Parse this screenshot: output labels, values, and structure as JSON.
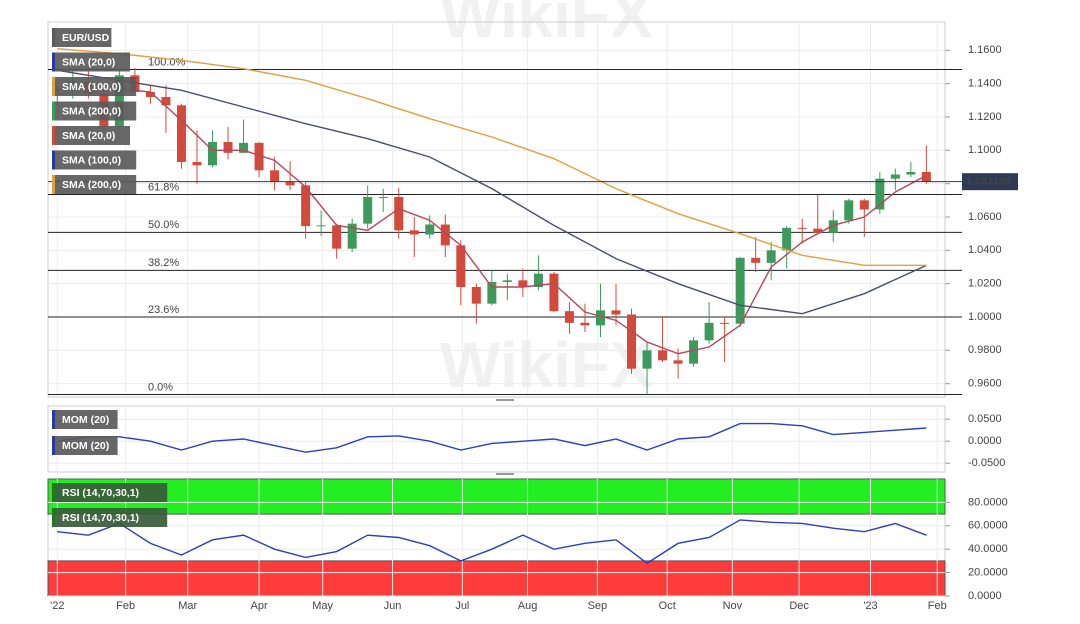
{
  "watermark": "WikiFX",
  "chart_data": [
    {
      "type": "candlestick",
      "x": [
        0,
        1,
        2,
        3,
        4,
        5,
        6,
        7,
        8,
        9,
        10,
        11,
        12,
        13,
        14,
        15,
        16,
        17,
        18,
        19,
        20,
        21,
        22,
        23,
        24,
        25,
        26,
        27,
        28,
        29,
        30,
        31,
        32,
        33,
        34,
        35,
        36,
        37,
        38,
        39,
        40,
        41,
        42,
        43,
        44,
        45,
        46,
        47,
        48,
        49,
        50,
        51,
        52,
        53,
        54,
        55,
        56
      ],
      "open": [
        1.137,
        1.136,
        1.141,
        1.134,
        1.1145,
        1.145,
        1.135,
        1.132,
        1.127,
        1.093,
        1.091,
        1.105,
        1.0985,
        1.1045,
        1.088,
        1.081,
        1.079,
        1.0545,
        1.055,
        1.041,
        1.056,
        1.072,
        1.072,
        1.052,
        1.0495,
        1.0555,
        1.043,
        1.018,
        1.008,
        1.021,
        1.022,
        1.018,
        1.026,
        1.0035,
        0.9965,
        0.995,
        1.004,
        1.0015,
        0.969,
        0.98,
        0.974,
        0.972,
        0.986,
        0.9965,
        0.996,
        1.0355,
        1.0325,
        1.04,
        1.0535,
        1.053,
        1.0505,
        1.058,
        1.07,
        1.0645,
        1.083,
        1.0855,
        1.087
      ],
      "high": [
        1.1385,
        1.148,
        1.148,
        1.137,
        1.148,
        1.1495,
        1.1395,
        1.139,
        1.128,
        1.112,
        1.112,
        1.114,
        1.1185,
        1.105,
        1.096,
        1.0935,
        1.081,
        1.064,
        1.056,
        1.059,
        1.079,
        1.077,
        1.0775,
        1.06,
        1.061,
        1.0615,
        1.046,
        1.02,
        1.028,
        1.026,
        1.029,
        1.037,
        1.027,
        1.009,
        1.008,
        1.02,
        1.02,
        1.005,
        0.985,
        0.9999,
        0.981,
        0.988,
        1.009,
        1.0,
        1.036,
        1.048,
        1.045,
        1.0545,
        1.059,
        1.0735,
        1.064,
        1.071,
        1.071,
        1.087,
        1.089,
        1.093,
        1.103
      ],
      "low": [
        1.127,
        1.131,
        1.131,
        1.112,
        1.114,
        1.134,
        1.128,
        1.1105,
        1.089,
        1.08,
        1.09,
        1.0945,
        1.0985,
        1.084,
        1.076,
        1.076,
        1.047,
        1.0485,
        1.035,
        1.039,
        1.053,
        1.063,
        1.047,
        1.036,
        1.047,
        1.036,
        1.007,
        0.996,
        1.007,
        1.01,
        1.012,
        1.016,
        1.003,
        0.99,
        0.991,
        0.988,
        0.995,
        0.966,
        0.9535,
        0.973,
        0.963,
        0.97,
        0.984,
        0.973,
        0.994,
        1.027,
        1.022,
        1.029,
        1.044,
        1.052,
        1.045,
        1.056,
        1.048,
        1.062,
        1.076,
        1.084,
        1.08
      ],
      "close": [
        1.136,
        1.141,
        1.134,
        1.1145,
        1.145,
        1.135,
        1.132,
        1.127,
        1.093,
        1.091,
        1.105,
        1.0985,
        1.1045,
        1.088,
        1.081,
        1.079,
        1.0545,
        1.055,
        1.041,
        1.056,
        1.072,
        1.072,
        1.052,
        1.0495,
        1.0555,
        1.043,
        1.018,
        1.008,
        1.021,
        1.022,
        1.018,
        1.026,
        1.0035,
        0.9965,
        0.995,
        1.004,
        1.0015,
        0.969,
        0.98,
        0.974,
        0.972,
        0.986,
        0.9965,
        0.996,
        1.0355,
        1.0325,
        1.04,
        1.0535,
        1.053,
        1.0505,
        1.058,
        1.07,
        1.0645,
        1.083,
        1.0855,
        1.087,
        1.0812
      ],
      "up_color": "#3d9a5c",
      "down_color": "#d24a3c",
      "series": [
        {
          "color": "#b5475a",
          "x": [
            4,
            6,
            8,
            10,
            12,
            14,
            16,
            18,
            20,
            22,
            24,
            26,
            28,
            30,
            32,
            34,
            36,
            38,
            40,
            42,
            44,
            46,
            48,
            50,
            52,
            54,
            56
          ],
          "values": [
            1.137,
            1.135,
            1.118,
            1.1,
            1.1,
            1.094,
            1.078,
            1.055,
            1.052,
            1.065,
            1.058,
            1.043,
            1.018,
            1.018,
            1.02,
            1.003,
            0.998,
            0.985,
            0.978,
            0.982,
            0.995,
            1.03,
            1.045,
            1.055,
            1.06,
            1.075,
            1.085
          ]
        },
        {
          "color": "#4a4e6e",
          "x": [
            0,
            4,
            8,
            12,
            16,
            20,
            24,
            28,
            32,
            36,
            40,
            44,
            48,
            52,
            56
          ],
          "values": [
            1.148,
            1.142,
            1.136,
            1.126,
            1.116,
            1.107,
            1.096,
            1.077,
            1.055,
            1.035,
            1.02,
            1.007,
            1.002,
            1.014,
            1.031
          ]
        },
        {
          "color": "#e0a040",
          "x": [
            0,
            4,
            8,
            12,
            16,
            20,
            24,
            28,
            32,
            36,
            40,
            44,
            48,
            52,
            56
          ],
          "values": [
            1.161,
            1.158,
            1.154,
            1.149,
            1.142,
            1.131,
            1.119,
            1.108,
            1.095,
            1.077,
            1.062,
            1.05,
            1.037,
            1.031,
            1.031
          ]
        }
      ],
      "legend": [
        {
          "name": "EUR/USD",
          "color": "#5a5a5a"
        },
        {
          "name": "SMA (20,0)",
          "color": "#2b3a9a"
        },
        {
          "name": "SMA (100,0)",
          "color": "#e0a040"
        },
        {
          "name": "SMA (200,0)",
          "color": "#3d9a5c"
        },
        {
          "name": "SMA (20,0)",
          "color": "#d24a3c"
        },
        {
          "name": "SMA (100,0)",
          "color": "#2b3a9a"
        },
        {
          "name": "SMA (200,0)",
          "color": "#e0a040"
        }
      ],
      "levels": [
        {
          "label": "100.0%",
          "value": 1.1485
        },
        {
          "label": "61.8%",
          "value": 1.0735
        },
        {
          "label": "50.0%",
          "value": 1.0508
        },
        {
          "label": "38.2%",
          "value": 1.028
        },
        {
          "label": "23.6%",
          "value": 1.0
        },
        {
          "label": "0.0%",
          "value": 0.9535
        }
      ],
      "last_value": 1.08119,
      "last_label": "1.081190",
      "xlim": [
        -0.6,
        57.2
      ],
      "ylim": [
        0.952,
        1.177
      ],
      "yticks": [
        {
          "value": 0.96,
          "label": "0.9600"
        },
        {
          "value": 0.98,
          "label": "0.9800"
        },
        {
          "value": 1.0,
          "label": "1.0000"
        },
        {
          "value": 1.02,
          "label": "1.0200"
        },
        {
          "value": 1.04,
          "label": "1.0400"
        },
        {
          "value": 1.06,
          "label": "1.0600"
        },
        {
          "value": 1.08,
          "label": "1.0800"
        },
        {
          "value": 1.1,
          "label": "1.1000"
        },
        {
          "value": 1.12,
          "label": "1.1200"
        },
        {
          "value": 1.14,
          "label": "1.1400"
        },
        {
          "value": 1.16,
          "label": "1.1600"
        }
      ]
    },
    {
      "type": "line",
      "series": [
        {
          "color": "#2b3fbf",
          "x": [
            0,
            2,
            4,
            6,
            8,
            10,
            12,
            14,
            16,
            18,
            20,
            22,
            24,
            26,
            28,
            30,
            32,
            34,
            36,
            38,
            40,
            42,
            44,
            46,
            48,
            50,
            52,
            54,
            56
          ],
          "values": [
            0.0,
            0.01,
            0.01,
            0.0,
            -0.02,
            0.0,
            0.005,
            -0.01,
            -0.025,
            -0.015,
            0.01,
            0.012,
            0.0,
            -0.02,
            -0.005,
            0.0,
            0.005,
            -0.01,
            0.005,
            -0.02,
            0.005,
            0.01,
            0.04,
            0.04,
            0.035,
            0.015,
            0.02,
            0.025,
            0.03
          ]
        }
      ],
      "legend": [
        {
          "name": "MOM (20)",
          "color": "#2b3a9a"
        },
        {
          "name": "MOM (20)",
          "color": "#2b3a9a"
        }
      ],
      "xlim": [
        -0.6,
        57.2
      ],
      "ylim": [
        -0.07,
        0.08
      ],
      "yticks": [
        {
          "value": -0.05,
          "label": "-0.0500"
        },
        {
          "value": 0,
          "label": "0.0000"
        },
        {
          "value": 0.05,
          "label": "0.0500"
        }
      ]
    },
    {
      "type": "line",
      "series": [
        {
          "color": "#2b3fbf",
          "x": [
            0,
            2,
            4,
            6,
            8,
            10,
            12,
            14,
            16,
            18,
            20,
            22,
            24,
            26,
            28,
            30,
            32,
            34,
            36,
            38,
            40,
            42,
            44,
            46,
            48,
            50,
            52,
            54,
            56
          ],
          "values": [
            55,
            52,
            62,
            45,
            35,
            48,
            52,
            40,
            33,
            38,
            52,
            50,
            43,
            30,
            40,
            52,
            40,
            45,
            48,
            28,
            45,
            50,
            65,
            63,
            62,
            58,
            55,
            62,
            52
          ]
        }
      ],
      "legend": [
        {
          "name": "RSI (14,70,30,1)",
          "color": "#1e7a1e"
        },
        {
          "name": "RSI (14,70,30,1)",
          "color": "#1e7a1e"
        }
      ],
      "overbought": 70,
      "oversold": 30,
      "overbought_color": "#22ee22",
      "oversold_color": "#ff3b3b",
      "xlim": [
        -0.6,
        57.2
      ],
      "ylim": [
        0,
        100
      ],
      "yticks": [
        {
          "value": 0,
          "label": "0.0000"
        },
        {
          "value": 20,
          "label": "20.0000"
        },
        {
          "value": 40,
          "label": "40.0000"
        },
        {
          "value": 60,
          "label": "60.0000"
        },
        {
          "value": 80,
          "label": "80.0000"
        }
      ],
      "xticks": [
        {
          "value": 0.0,
          "label": "'22"
        },
        {
          "value": 4.4,
          "label": "Feb"
        },
        {
          "value": 8.4,
          "label": "Mar"
        },
        {
          "value": 13.0,
          "label": "Apr"
        },
        {
          "value": 17.1,
          "label": "May"
        },
        {
          "value": 21.6,
          "label": "Jun"
        },
        {
          "value": 26.1,
          "label": "Jul"
        },
        {
          "value": 30.3,
          "label": "Aug"
        },
        {
          "value": 34.8,
          "label": "Sep"
        },
        {
          "value": 39.3,
          "label": "Oct"
        },
        {
          "value": 43.5,
          "label": "Nov"
        },
        {
          "value": 47.8,
          "label": "Dec"
        },
        {
          "value": 52.4,
          "label": "'23"
        },
        {
          "value": 56.7,
          "label": "Feb"
        }
      ]
    }
  ]
}
